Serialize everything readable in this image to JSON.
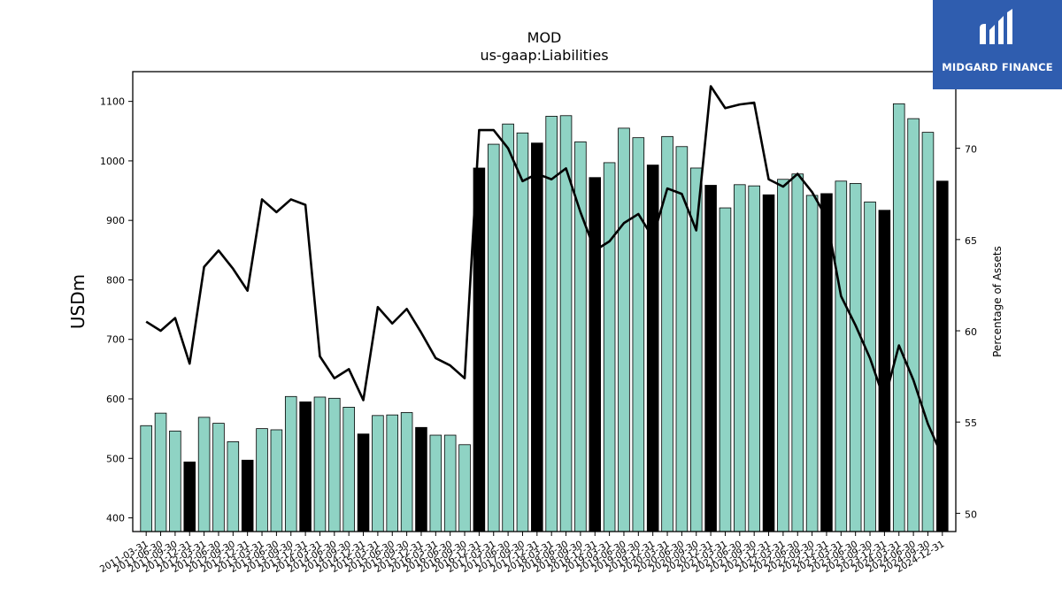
{
  "logo": {
    "text": "MIDGARD FINANCE"
  },
  "chart_data": {
    "type": "bar",
    "title": "MOD",
    "subtitle": "us-gaap:Liabilities",
    "ylabel": "USDm",
    "y2label": "Percentage of Assets",
    "ylim": [
      377,
      1150
    ],
    "y2lim": [
      49,
      74.2
    ],
    "yticks": [
      400,
      500,
      600,
      700,
      800,
      900,
      1000,
      1100
    ],
    "y2ticks": [
      50,
      55,
      60,
      65,
      70
    ],
    "colors": {
      "bar": "#8fd3c4",
      "bar_year_end": "#000000",
      "line": "#000000"
    },
    "categories": [
      "2011-03-31",
      "2011-06-30",
      "2011-09-30",
      "2011-12-31",
      "2012-03-31",
      "2012-06-30",
      "2012-09-30",
      "2012-12-31",
      "2013-03-31",
      "2013-06-30",
      "2013-09-30",
      "2013-12-31",
      "2014-03-31",
      "2014-06-30",
      "2014-09-30",
      "2014-12-31",
      "2015-03-31",
      "2015-06-30",
      "2015-09-30",
      "2015-12-31",
      "2016-03-31",
      "2016-06-30",
      "2016-09-30",
      "2016-12-31",
      "2017-03-31",
      "2017-06-30",
      "2017-09-30",
      "2017-12-31",
      "2018-03-31",
      "2018-06-30",
      "2018-09-30",
      "2018-12-31",
      "2019-03-31",
      "2019-06-30",
      "2019-09-30",
      "2019-12-31",
      "2020-03-31",
      "2020-06-30",
      "2020-09-30",
      "2020-12-31",
      "2021-03-31",
      "2021-06-30",
      "2021-09-30",
      "2021-12-31",
      "2022-03-31",
      "2022-06-30",
      "2022-09-30",
      "2022-12-31",
      "2023-03-31",
      "2023-06-30",
      "2023-09-30",
      "2023-12-31",
      "2024-03-31",
      "2024-06-30",
      "2024-09-30",
      "2024-12-31"
    ],
    "series": [
      {
        "type": "bar",
        "values": [
          555,
          576,
          546,
          494,
          569,
          559,
          528,
          497,
          550,
          548,
          604,
          595,
          603,
          601,
          586,
          541,
          572,
          573,
          577,
          552,
          539,
          539,
          523,
          988,
          1028,
          1062,
          1047,
          1030,
          1075,
          1076,
          1032,
          972,
          997,
          1055,
          1039,
          993,
          1041,
          1024,
          988,
          959,
          921,
          960,
          958,
          943,
          969,
          978,
          942,
          945,
          966,
          962,
          931,
          917,
          1096,
          1071,
          1048,
          966
        ]
      },
      {
        "type": "line",
        "axis": "right",
        "values": [
          60.5,
          60.0,
          60.7,
          58.2,
          63.5,
          64.4,
          63.4,
          62.2,
          67.2,
          66.5,
          67.2,
          66.9,
          58.6,
          57.4,
          57.9,
          56.2,
          61.3,
          60.4,
          61.2,
          59.9,
          58.5,
          58.1,
          57.4,
          71.0,
          71.0,
          70.0,
          68.2,
          68.6,
          68.3,
          68.9,
          66.5,
          64.4,
          64.9,
          65.9,
          66.4,
          65.1,
          67.8,
          67.5,
          65.5,
          73.4,
          72.2,
          72.4,
          72.5,
          68.3,
          67.9,
          68.6,
          67.6,
          66.2,
          61.9,
          60.3,
          58.5,
          56.2,
          59.2,
          57.3,
          54.9,
          53.1
        ]
      }
    ]
  }
}
